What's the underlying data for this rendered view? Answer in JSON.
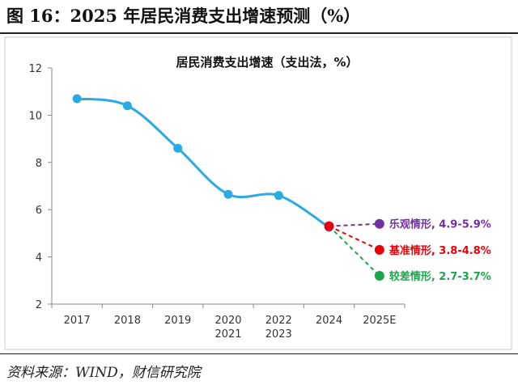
{
  "figure": {
    "title": "图 16：2025 年居民消费支出增速预测（%）",
    "source": "资料来源：WIND，财信研究院"
  },
  "chart_data": {
    "type": "line",
    "title": "居民消费支出增速（支出法，%）",
    "xlabel": "",
    "ylabel": "",
    "categories": [
      "2017",
      "2018",
      "2019",
      "2020\n2021",
      "2022\n2023",
      "2024",
      "2025E"
    ],
    "ylim": [
      2,
      12
    ],
    "yticks": [
      2,
      4,
      6,
      8,
      10,
      12
    ],
    "grid": false,
    "series": [
      {
        "values": [
          10.7,
          10.4,
          8.6,
          6.65,
          6.6,
          5.25,
          null
        ],
        "color": "#29aae2"
      }
    ],
    "scenarios": [
      {
        "label": "乐观情形, 4.9-5.9%",
        "from": 5.3,
        "to": 5.4,
        "color": "#7030a0"
      },
      {
        "label": "基准情形, 3.8-4.8%",
        "from": 5.3,
        "to": 4.3,
        "color": "#e8000b"
      },
      {
        "label": "较差情形, 2.7-3.7%",
        "from": 5.3,
        "to": 3.2,
        "color": "#1aa64b"
      }
    ]
  }
}
